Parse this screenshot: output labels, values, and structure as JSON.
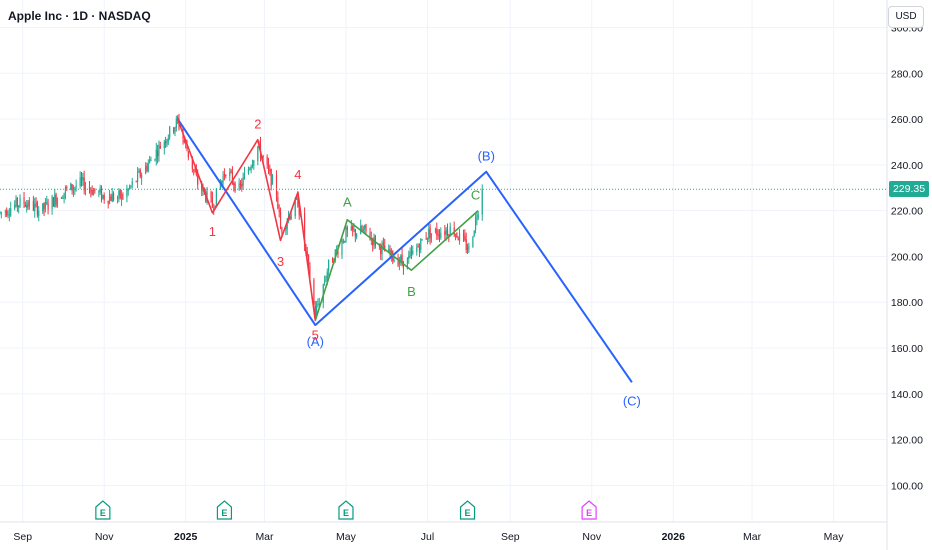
{
  "header": {
    "title": "Apple Inc · 1D · NASDAQ",
    "currency": "USD"
  },
  "colors": {
    "up": "#22ab94",
    "down": "#f23645",
    "wave_major": "#2962ff",
    "wave_impulse": "#f23645",
    "wave_correction": "#43a047",
    "earnings": "#089981",
    "earnings_future": "#e040fb",
    "grid": "#f0f3fa",
    "axis_text": "#131722"
  },
  "chart_data": {
    "type": "candlestick",
    "title": "Apple Inc · 1D · NASDAQ",
    "xlabel": "",
    "ylabel": "",
    "ylim": [
      84,
      312
    ],
    "y_ticks": [
      100,
      120,
      140,
      160,
      180,
      200,
      220,
      240,
      260,
      280,
      300
    ],
    "y_tick_labels": [
      "100.00",
      "120.00",
      "140.00",
      "160.00",
      "180.00",
      "200.00",
      "220.00",
      "240.00",
      "260.00",
      "280.00",
      "300.00"
    ],
    "x_range": [
      "2024-08-15",
      "2026-06-10"
    ],
    "x_ticks": [
      {
        "date": "2024-09-01",
        "label": "Sep",
        "bold": false
      },
      {
        "date": "2024-11-01",
        "label": "Nov",
        "bold": false
      },
      {
        "date": "2025-01-01",
        "label": "2025",
        "bold": true
      },
      {
        "date": "2025-03-01",
        "label": "Mar",
        "bold": false
      },
      {
        "date": "2025-05-01",
        "label": "May",
        "bold": false
      },
      {
        "date": "2025-07-01",
        "label": "Jul",
        "bold": false
      },
      {
        "date": "2025-09-01",
        "label": "Sep",
        "bold": false
      },
      {
        "date": "2025-11-01",
        "label": "Nov",
        "bold": false
      },
      {
        "date": "2026-01-01",
        "label": "2026",
        "bold": true
      },
      {
        "date": "2026-03-01",
        "label": "Mar",
        "bold": false
      },
      {
        "date": "2026-05-01",
        "label": "May",
        "bold": false
      }
    ],
    "last_price": 229.35,
    "last_price_label": "229.35",
    "price_anchors": [
      [
        "2024-08-15",
        219
      ],
      [
        "2024-09-01",
        224
      ],
      [
        "2024-09-15",
        220
      ],
      [
        "2024-10-01",
        228
      ],
      [
        "2024-10-15",
        232
      ],
      [
        "2024-11-01",
        226
      ],
      [
        "2024-11-15",
        226
      ],
      [
        "2024-12-01",
        238
      ],
      [
        "2024-12-15",
        250
      ],
      [
        "2024-12-26",
        259
      ],
      [
        "2025-01-10",
        232
      ],
      [
        "2025-01-21",
        222
      ],
      [
        "2025-01-31",
        238
      ],
      [
        "2025-02-10",
        229
      ],
      [
        "2025-02-24",
        248
      ],
      [
        "2025-03-10",
        228
      ],
      [
        "2025-03-13",
        212
      ],
      [
        "2025-03-26",
        224
      ],
      [
        "2025-04-08",
        175
      ],
      [
        "2025-04-18",
        196
      ],
      [
        "2025-05-01",
        210
      ],
      [
        "2025-05-15",
        211
      ],
      [
        "2025-06-01",
        201
      ],
      [
        "2025-06-15",
        197
      ],
      [
        "2025-07-01",
        210
      ],
      [
        "2025-07-20",
        212
      ],
      [
        "2025-08-01",
        203
      ],
      [
        "2025-08-11",
        229
      ]
    ],
    "waves": [
      {
        "name": "major",
        "color": "#2962ff",
        "points": [
          [
            "2024-12-26",
            260
          ],
          [
            "2025-04-08",
            170
          ],
          [
            "2025-08-14",
            237
          ],
          [
            "2025-12-01",
            145
          ]
        ]
      },
      {
        "name": "impulse",
        "color": "#f23645",
        "points": [
          [
            "2024-12-26",
            260
          ],
          [
            "2025-01-21",
            219
          ],
          [
            "2025-02-24",
            251
          ],
          [
            "2025-03-13",
            207
          ],
          [
            "2025-03-26",
            228
          ],
          [
            "2025-04-08",
            172
          ]
        ]
      },
      {
        "name": "correction",
        "color": "#43a047",
        "points": [
          [
            "2025-04-08",
            172
          ],
          [
            "2025-05-02",
            216
          ],
          [
            "2025-06-19",
            194
          ],
          [
            "2025-08-08",
            220
          ]
        ]
      }
    ],
    "annotations": [
      {
        "text": "(B)",
        "date": "2025-08-14",
        "price": 244,
        "color": "#2962ff"
      },
      {
        "text": "(A)",
        "date": "2025-04-08",
        "price": 163,
        "color": "#2962ff"
      },
      {
        "text": "(C)",
        "date": "2025-12-01",
        "price": 137,
        "color": "#2962ff"
      },
      {
        "text": "1",
        "date": "2025-01-21",
        "price": 211,
        "color": "#f23645"
      },
      {
        "text": "2",
        "date": "2025-02-24",
        "price": 258,
        "color": "#f23645"
      },
      {
        "text": "3",
        "date": "2025-03-13",
        "price": 198,
        "color": "#f23645"
      },
      {
        "text": "4",
        "date": "2025-03-26",
        "price": 236,
        "color": "#f23645"
      },
      {
        "text": "5",
        "date": "2025-04-08",
        "price": 166,
        "color": "#f23645"
      },
      {
        "text": "A",
        "date": "2025-05-02",
        "price": 224,
        "color": "#43a047"
      },
      {
        "text": "B",
        "date": "2025-06-19",
        "price": 185,
        "color": "#43a047"
      },
      {
        "text": "C",
        "date": "2025-08-06",
        "price": 227,
        "color": "#43a047"
      }
    ],
    "earnings_markers": [
      {
        "date": "2024-10-31",
        "label": "E",
        "future": false
      },
      {
        "date": "2025-01-30",
        "label": "E",
        "future": false
      },
      {
        "date": "2025-05-01",
        "label": "E",
        "future": false
      },
      {
        "date": "2025-07-31",
        "label": "E",
        "future": false
      },
      {
        "date": "2025-10-30",
        "label": "E",
        "future": true
      }
    ]
  }
}
